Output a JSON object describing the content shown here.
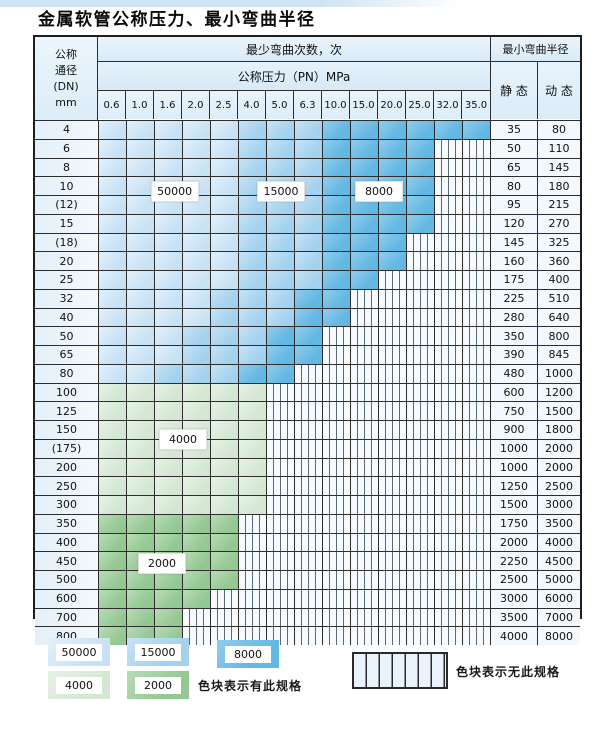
{
  "title": "金属软管公称压力、最小弯曲半径",
  "table": {
    "dn_header": {
      "line1": "公称",
      "line2": "通径",
      "line3": "(DN)",
      "line4": "mm"
    },
    "cycles_header": "最少弯曲次数，次",
    "pressure_header": "公称压力（PN）MPa",
    "radius_header": "最小弯曲半径",
    "static_label": "静 态",
    "dynamic_label": "动 态",
    "pressure_columns": [
      "0.6",
      "1.0",
      "1.6",
      "2.0",
      "2.5",
      "4.0",
      "5.0",
      "6.3",
      "10.0",
      "15.0",
      "20.0",
      "25.0",
      "32.0",
      "35.0"
    ],
    "rows": [
      {
        "dn": "4",
        "static": "35",
        "dynamic": "80",
        "bands": [
          [
            "c50",
            5
          ],
          [
            "c15",
            3
          ],
          [
            "c8",
            6
          ]
        ]
      },
      {
        "dn": "6",
        "static": "50",
        "dynamic": "110",
        "bands": [
          [
            "c50",
            5
          ],
          [
            "c15",
            3
          ],
          [
            "c8",
            4
          ]
        ]
      },
      {
        "dn": "8",
        "static": "65",
        "dynamic": "145",
        "bands": [
          [
            "c50",
            5
          ],
          [
            "c15",
            3
          ],
          [
            "c8",
            4
          ]
        ]
      },
      {
        "dn": "10",
        "static": "80",
        "dynamic": "180",
        "bands": [
          [
            "c50",
            5
          ],
          [
            "c15",
            3
          ],
          [
            "c8",
            4
          ]
        ]
      },
      {
        "dn": "(12)",
        "static": "95",
        "dynamic": "215",
        "bands": [
          [
            "c50",
            5
          ],
          [
            "c15",
            3
          ],
          [
            "c8",
            4
          ]
        ]
      },
      {
        "dn": "15",
        "static": "120",
        "dynamic": "270",
        "bands": [
          [
            "c50",
            5
          ],
          [
            "c15",
            3
          ],
          [
            "c8",
            4
          ]
        ]
      },
      {
        "dn": "(18)",
        "static": "145",
        "dynamic": "325",
        "bands": [
          [
            "c50",
            5
          ],
          [
            "c15",
            3
          ],
          [
            "c8",
            3
          ]
        ]
      },
      {
        "dn": "20",
        "static": "160",
        "dynamic": "360",
        "bands": [
          [
            "c50",
            5
          ],
          [
            "c15",
            3
          ],
          [
            "c8",
            3
          ]
        ]
      },
      {
        "dn": "25",
        "static": "175",
        "dynamic": "400",
        "bands": [
          [
            "c50",
            5
          ],
          [
            "c15",
            3
          ],
          [
            "c8",
            2
          ]
        ]
      },
      {
        "dn": "32",
        "static": "225",
        "dynamic": "510",
        "bands": [
          [
            "c50",
            4
          ],
          [
            "c15",
            3
          ],
          [
            "c8",
            2
          ]
        ]
      },
      {
        "dn": "40",
        "static": "280",
        "dynamic": "640",
        "bands": [
          [
            "c50",
            4
          ],
          [
            "c15",
            3
          ],
          [
            "c8",
            2
          ]
        ]
      },
      {
        "dn": "50",
        "static": "350",
        "dynamic": "800",
        "bands": [
          [
            "c50",
            3
          ],
          [
            "c15",
            3
          ],
          [
            "c8",
            2
          ]
        ]
      },
      {
        "dn": "65",
        "static": "390",
        "dynamic": "845",
        "bands": [
          [
            "c50",
            3
          ],
          [
            "c15",
            3
          ],
          [
            "c8",
            2
          ]
        ]
      },
      {
        "dn": "80",
        "static": "480",
        "dynamic": "1000",
        "bands": [
          [
            "c50",
            2
          ],
          [
            "c15",
            3
          ],
          [
            "c8",
            2
          ]
        ]
      },
      {
        "dn": "100",
        "static": "600",
        "dynamic": "1200",
        "bands": [
          [
            "g4",
            6
          ]
        ]
      },
      {
        "dn": "125",
        "static": "750",
        "dynamic": "1500",
        "bands": [
          [
            "g4",
            6
          ]
        ]
      },
      {
        "dn": "150",
        "static": "900",
        "dynamic": "1800",
        "bands": [
          [
            "g4",
            6
          ]
        ]
      },
      {
        "dn": "(175)",
        "static": "1000",
        "dynamic": "2000",
        "bands": [
          [
            "g4",
            6
          ]
        ]
      },
      {
        "dn": "200",
        "static": "1000",
        "dynamic": "2000",
        "bands": [
          [
            "g4",
            6
          ]
        ]
      },
      {
        "dn": "250",
        "static": "1250",
        "dynamic": "2500",
        "bands": [
          [
            "g4",
            6
          ]
        ]
      },
      {
        "dn": "300",
        "static": "1500",
        "dynamic": "3000",
        "bands": [
          [
            "g4",
            6
          ]
        ]
      },
      {
        "dn": "350",
        "static": "1750",
        "dynamic": "3500",
        "bands": [
          [
            "g2",
            5
          ]
        ]
      },
      {
        "dn": "400",
        "static": "2000",
        "dynamic": "4000",
        "bands": [
          [
            "g2",
            5
          ]
        ]
      },
      {
        "dn": "450",
        "static": "2250",
        "dynamic": "4500",
        "bands": [
          [
            "g2",
            5
          ]
        ]
      },
      {
        "dn": "500",
        "static": "2500",
        "dynamic": "5000",
        "bands": [
          [
            "g2",
            5
          ]
        ]
      },
      {
        "dn": "600",
        "static": "3000",
        "dynamic": "6000",
        "bands": [
          [
            "g2",
            4
          ]
        ]
      },
      {
        "dn": "700",
        "static": "3500",
        "dynamic": "7000",
        "bands": [
          [
            "g2",
            3
          ]
        ]
      },
      {
        "dn": "800",
        "static": "4000",
        "dynamic": "8000",
        "bands": [
          [
            "g2",
            3
          ]
        ]
      }
    ]
  },
  "overlays": [
    {
      "label": "50000",
      "row": 4,
      "col": 2.7
    },
    {
      "label": "15000",
      "row": 4,
      "col": 6.5
    },
    {
      "label": "8000",
      "row": 4,
      "col": 10.0
    },
    {
      "label": "4000",
      "row": 18,
      "col": 3.0
    },
    {
      "label": "2000",
      "row": 25,
      "col": 2.25
    }
  ],
  "legend": {
    "items": [
      {
        "label": "50000",
        "cls": "c50"
      },
      {
        "label": "15000",
        "cls": "c15"
      },
      {
        "label": "8000",
        "cls": "c8"
      },
      {
        "label": "4000",
        "cls": "g4"
      },
      {
        "label": "2000",
        "cls": "g2"
      }
    ],
    "has_spec_text": "色块表示有此规格",
    "no_spec_text": "色块表示无此规格"
  },
  "colors": {
    "c50": "#c8e2f5",
    "c15": "#a3d1ee",
    "c8": "#62b7e3",
    "g4": "#d4e7d2",
    "g2": "#94c892",
    "grid": "#2d2d2d",
    "hatchLine": "#5a6a75"
  }
}
